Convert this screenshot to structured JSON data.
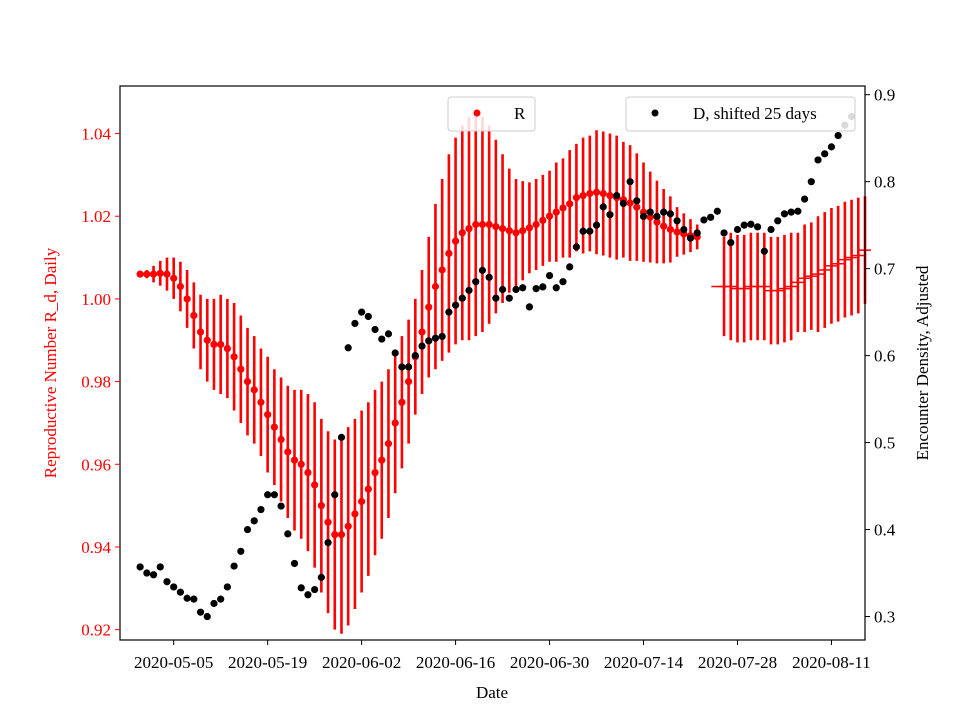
{
  "chart_data": {
    "type": "scatter",
    "xlabel": "Date",
    "ylabel_left": "Reproductive Number R_d, Daily",
    "ylabel_right": "Encounter Density, Adjusted",
    "x_ticks": [
      "2020-05-05",
      "2020-05-19",
      "2020-06-02",
      "2020-06-16",
      "2020-06-30",
      "2020-07-14",
      "2020-07-28",
      "2020-08-11"
    ],
    "y_left_ticks": [
      "0.92",
      "0.94",
      "0.96",
      "0.98",
      "1.00",
      "1.02",
      "1.04"
    ],
    "y_right_ticks": [
      "0.3",
      "0.4",
      "0.5",
      "0.6",
      "0.7",
      "0.8",
      "0.9"
    ],
    "x_range": [
      "2020-04-27",
      "2020-08-16"
    ],
    "y_left_range": [
      0.9175,
      1.0515
    ],
    "y_right_range": [
      0.273,
      0.91
    ],
    "legend_R": "R",
    "legend_D": "D, shifted 25 days",
    "legend_R_placement": "top-center",
    "legend_D_placement": "top-right",
    "colors": {
      "R": "#ff0000",
      "D": "#000000",
      "left_axis": "#ff0000",
      "right_axis": "#000000"
    },
    "series": [
      {
        "name": "R",
        "axis": "left",
        "color": "#ff0000",
        "x": [
          "2020-04-30",
          "2020-05-01",
          "2020-05-02",
          "2020-05-03",
          "2020-05-04",
          "2020-05-05",
          "2020-05-06",
          "2020-05-07",
          "2020-05-08",
          "2020-05-09",
          "2020-05-10",
          "2020-05-11",
          "2020-05-12",
          "2020-05-13",
          "2020-05-14",
          "2020-05-15",
          "2020-05-16",
          "2020-05-17",
          "2020-05-18",
          "2020-05-19",
          "2020-05-20",
          "2020-05-21",
          "2020-05-22",
          "2020-05-23",
          "2020-05-24",
          "2020-05-25",
          "2020-05-26",
          "2020-05-27",
          "2020-05-28",
          "2020-05-29",
          "2020-05-30",
          "2020-05-31",
          "2020-06-01",
          "2020-06-02",
          "2020-06-03",
          "2020-06-04",
          "2020-06-05",
          "2020-06-06",
          "2020-06-07",
          "2020-06-08",
          "2020-06-09",
          "2020-06-10",
          "2020-06-11",
          "2020-06-12",
          "2020-06-13",
          "2020-06-14",
          "2020-06-15",
          "2020-06-16",
          "2020-06-17",
          "2020-06-18",
          "2020-06-19",
          "2020-06-20",
          "2020-06-21",
          "2020-06-22",
          "2020-06-23",
          "2020-06-24",
          "2020-06-25",
          "2020-06-26",
          "2020-06-27",
          "2020-06-28",
          "2020-06-29",
          "2020-06-30",
          "2020-07-01",
          "2020-07-02",
          "2020-07-03",
          "2020-07-04",
          "2020-07-05",
          "2020-07-06",
          "2020-07-07",
          "2020-07-08",
          "2020-07-09",
          "2020-07-10",
          "2020-07-11",
          "2020-07-12",
          "2020-07-13",
          "2020-07-14",
          "2020-07-15",
          "2020-07-16",
          "2020-07-17",
          "2020-07-18",
          "2020-07-19",
          "2020-07-20",
          "2020-07-21",
          "2020-07-22"
        ],
        "y": [
          1.006,
          1.006,
          1.006,
          1.0062,
          1.006,
          1.005,
          1.003,
          1.0,
          0.996,
          0.992,
          0.99,
          0.989,
          0.989,
          0.988,
          0.986,
          0.983,
          0.98,
          0.978,
          0.975,
          0.972,
          0.969,
          0.966,
          0.963,
          0.961,
          0.96,
          0.958,
          0.955,
          0.95,
          0.946,
          0.943,
          0.943,
          0.945,
          0.948,
          0.951,
          0.954,
          0.958,
          0.961,
          0.965,
          0.97,
          0.975,
          0.98,
          0.986,
          0.992,
          0.998,
          1.003,
          1.007,
          1.011,
          1.014,
          1.016,
          1.017,
          1.018,
          1.018,
          1.018,
          1.0175,
          1.017,
          1.0165,
          1.016,
          1.0165,
          1.0172,
          1.018,
          1.019,
          1.02,
          1.021,
          1.022,
          1.023,
          1.0245,
          1.025,
          1.0255,
          1.0258,
          1.0255,
          1.025,
          1.0245,
          1.024,
          1.0232,
          1.0222,
          1.021,
          1.0198,
          1.0186,
          1.0176,
          1.0168,
          1.0162,
          1.0157,
          1.0153,
          1.015
        ],
        "y_err": [
          0,
          0.001,
          0.002,
          0.003,
          0.004,
          0.005,
          0.006,
          0.007,
          0.008,
          0.009,
          0.01,
          0.011,
          0.012,
          0.012,
          0.013,
          0.013,
          0.013,
          0.013,
          0.013,
          0.014,
          0.014,
          0.015,
          0.016,
          0.017,
          0.018,
          0.019,
          0.02,
          0.021,
          0.022,
          0.023,
          0.024,
          0.024,
          0.023,
          0.022,
          0.021,
          0.02,
          0.019,
          0.018,
          0.017,
          0.016,
          0.015,
          0.014,
          0.015,
          0.017,
          0.02,
          0.022,
          0.024,
          0.025,
          0.026,
          0.027,
          0.027,
          0.026,
          0.024,
          0.021,
          0.018,
          0.015,
          0.013,
          0.012,
          0.011,
          0.011,
          0.011,
          0.011,
          0.012,
          0.012,
          0.013,
          0.013,
          0.014,
          0.014,
          0.015,
          0.015,
          0.015,
          0.015,
          0.014,
          0.014,
          0.013,
          0.012,
          0.011,
          0.01,
          0.009,
          0.008,
          0.006,
          0.005,
          0.004,
          0.003
        ]
      },
      {
        "name": "",
        "axis": "left",
        "color": "#ff0000",
        "marker": "dash",
        "x": [
          "2020-07-25",
          "2020-07-26",
          "2020-07-27",
          "2020-07-28",
          "2020-07-29",
          "2020-07-30",
          "2020-07-31",
          "2020-08-01",
          "2020-08-02",
          "2020-08-03",
          "2020-08-04",
          "2020-08-05",
          "2020-08-06",
          "2020-08-07",
          "2020-08-08",
          "2020-08-09",
          "2020-08-10",
          "2020-08-11",
          "2020-08-12",
          "2020-08-13",
          "2020-08-14",
          "2020-08-15",
          "2020-08-16"
        ],
        "y": [
          1.003,
          1.003,
          1.003,
          1.0025,
          1.0025,
          1.003,
          1.003,
          1.003,
          1.002,
          1.002,
          1.0025,
          1.003,
          1.004,
          1.005,
          1.0055,
          1.006,
          1.007,
          1.008,
          1.0085,
          1.0095,
          1.01,
          1.0105,
          1.0118
        ],
        "y_err": [
          0,
          0.012,
          0.013,
          0.013,
          0.013,
          0.013,
          0.013,
          0.013,
          0.013,
          0.013,
          0.013,
          0.013,
          0.012,
          0.013,
          0.013,
          0.014,
          0.014,
          0.014,
          0.014,
          0.014,
          0.014,
          0.014,
          0.013
        ]
      },
      {
        "name": "D, shifted 25 days",
        "axis": "right",
        "color": "#000000",
        "x": [
          "2020-04-30",
          "2020-05-01",
          "2020-05-02",
          "2020-05-03",
          "2020-05-04",
          "2020-05-05",
          "2020-05-06",
          "2020-05-07",
          "2020-05-08",
          "2020-05-09",
          "2020-05-10",
          "2020-05-11",
          "2020-05-12",
          "2020-05-13",
          "2020-05-14",
          "2020-05-15",
          "2020-05-16",
          "2020-05-17",
          "2020-05-18",
          "2020-05-19",
          "2020-05-20",
          "2020-05-21",
          "2020-05-22",
          "2020-05-23",
          "2020-05-24",
          "2020-05-25",
          "2020-05-26",
          "2020-05-27",
          "2020-05-28",
          "2020-05-29",
          "2020-05-30",
          "2020-05-31",
          "2020-06-01",
          "2020-06-02",
          "2020-06-03",
          "2020-06-04",
          "2020-06-05",
          "2020-06-06",
          "2020-06-07",
          "2020-06-08",
          "2020-06-09",
          "2020-06-10",
          "2020-06-11",
          "2020-06-12",
          "2020-06-13",
          "2020-06-14",
          "2020-06-15",
          "2020-06-16",
          "2020-06-17",
          "2020-06-18",
          "2020-06-19",
          "2020-06-20",
          "2020-06-21",
          "2020-06-22",
          "2020-06-23",
          "2020-06-24",
          "2020-06-25",
          "2020-06-26",
          "2020-06-27",
          "2020-06-28",
          "2020-06-29",
          "2020-06-30",
          "2020-07-01",
          "2020-07-02",
          "2020-07-03",
          "2020-07-04",
          "2020-07-05",
          "2020-07-06",
          "2020-07-07",
          "2020-07-08",
          "2020-07-09",
          "2020-07-10",
          "2020-07-11",
          "2020-07-12",
          "2020-07-13",
          "2020-07-14",
          "2020-07-15",
          "2020-07-16",
          "2020-07-17",
          "2020-07-18",
          "2020-07-19",
          "2020-07-20",
          "2020-07-21",
          "2020-07-22",
          "2020-07-23",
          "2020-07-24",
          "2020-07-25",
          "2020-07-26",
          "2020-07-27",
          "2020-07-28",
          "2020-07-29",
          "2020-07-30",
          "2020-07-31",
          "2020-08-01",
          "2020-08-02",
          "2020-08-03",
          "2020-08-04",
          "2020-08-05",
          "2020-08-06",
          "2020-08-07",
          "2020-08-08",
          "2020-08-09",
          "2020-08-10",
          "2020-08-11",
          "2020-08-12",
          "2020-08-13",
          "2020-08-14"
        ],
        "y": [
          0.357,
          0.35,
          0.348,
          0.357,
          0.34,
          0.334,
          0.328,
          0.321,
          0.32,
          0.305,
          0.3,
          0.315,
          0.32,
          0.334,
          0.358,
          0.375,
          0.4,
          0.41,
          0.423,
          0.44,
          0.44,
          0.427,
          0.395,
          0.361,
          0.333,
          0.325,
          0.331,
          0.345,
          0.385,
          0.44,
          0.506,
          0.609,
          0.637,
          0.65,
          0.645,
          0.63,
          0.619,
          0.625,
          0.603,
          0.587,
          0.587,
          0.6,
          0.611,
          0.617,
          0.62,
          0.622,
          0.65,
          0.658,
          0.666,
          0.675,
          0.685,
          0.698,
          0.69,
          0.666,
          0.676,
          0.666,
          0.676,
          0.678,
          0.656,
          0.677,
          0.679,
          0.692,
          0.678,
          0.685,
          0.702,
          0.725,
          0.743,
          0.743,
          0.75,
          0.771,
          0.762,
          0.784,
          0.775,
          0.8,
          0.778,
          0.76,
          0.765,
          0.76,
          0.765,
          0.763,
          0.755,
          0.745,
          0.735,
          0.741,
          0.756,
          0.759,
          0.766,
          0.741,
          0.73,
          0.745,
          0.75,
          0.751,
          0.748,
          0.72,
          0.745,
          0.755,
          0.763,
          0.765,
          0.766,
          0.78,
          0.8,
          0.825,
          0.832,
          0.84,
          0.853,
          0.865,
          0.875
        ]
      }
    ]
  }
}
